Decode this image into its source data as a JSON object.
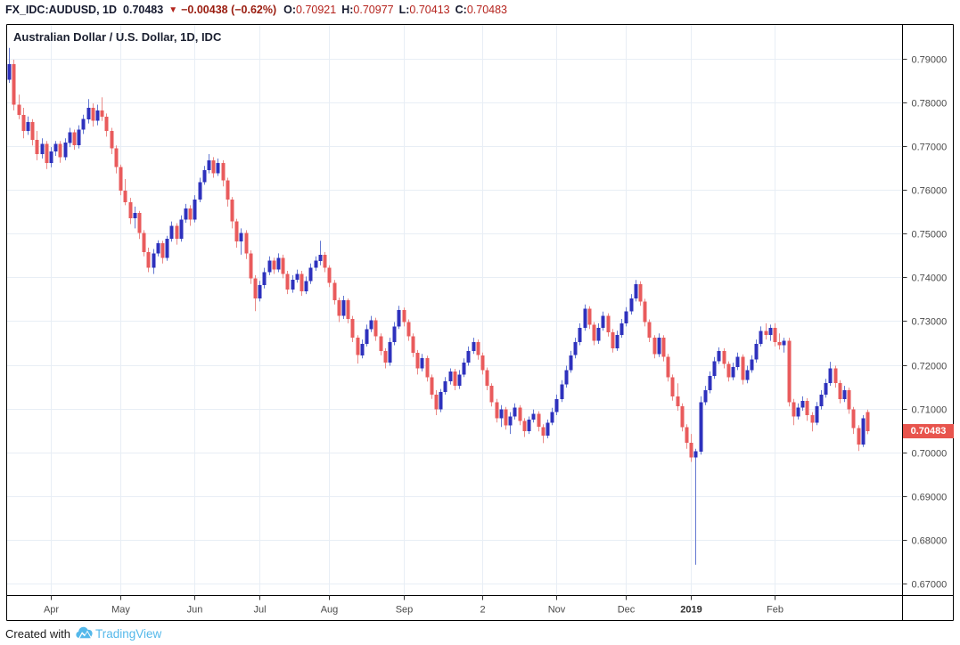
{
  "header": {
    "symbol": "FX_IDC:AUDUSD, 1D",
    "last_price": "0.70483",
    "direction_icon": "▼",
    "change": "−0.00438 (−0.62%)",
    "ohlc": [
      {
        "label": "O:",
        "value": "0.70921"
      },
      {
        "label": "H:",
        "value": "0.70977"
      },
      {
        "label": "L:",
        "value": "0.70413"
      },
      {
        "label": "C:",
        "value": "0.70483"
      }
    ]
  },
  "chart": {
    "title": "Australian Dollar / U.S. Dollar, 1D, IDC",
    "price_tag": "0.70483"
  },
  "footer": {
    "created_with": "Created with",
    "brand": "TradingView"
  },
  "colors": {
    "up_body": "#2e31bd",
    "up_wick": "#6479d2",
    "down_body": "#e95b5c",
    "down_wick": "#ea8b88",
    "grid": "#e8eef5",
    "frame": "#000000",
    "axis_text": "#4a4a4a",
    "axis_text_bold": "#2e2e2e",
    "tag_bg": "#e8544d",
    "tag_text": "#ffffff",
    "brand_blue": "#54b8ea"
  },
  "chart_data": {
    "type": "candlestick",
    "title": "Australian Dollar / U.S. Dollar, 1D, IDC",
    "symbol": "AUD/USD",
    "interval": "1D",
    "source": "IDC",
    "legend_position": "none",
    "grid": true,
    "y_axis": {
      "side": "right",
      "min": 0.67,
      "max": 0.79,
      "tick_labels": [
        "0.79000",
        "0.78000",
        "0.77000",
        "0.76000",
        "0.75000",
        "0.74000",
        "0.73000",
        "0.72000",
        "0.71000",
        "0.70000",
        "0.69000",
        "0.68000",
        "0.67000"
      ]
    },
    "x_axis": {
      "side": "bottom",
      "ticks": [
        {
          "label": "Apr",
          "index": 9,
          "bold": false
        },
        {
          "label": "May",
          "index": 24,
          "bold": false
        },
        {
          "label": "Jun",
          "index": 40,
          "bold": false
        },
        {
          "label": "Jul",
          "index": 54,
          "bold": false
        },
        {
          "label": "Aug",
          "index": 69,
          "bold": false
        },
        {
          "label": "Sep",
          "index": 85,
          "bold": false
        },
        {
          "label": "2",
          "index": 102,
          "bold": false
        },
        {
          "label": "Nov",
          "index": 118,
          "bold": false
        },
        {
          "label": "Dec",
          "index": 133,
          "bold": false
        },
        {
          "label": "2019",
          "index": 147,
          "bold": true
        },
        {
          "label": "Feb",
          "index": 165,
          "bold": false
        }
      ]
    },
    "last_close": 0.70483,
    "last_ohlc": {
      "open": 0.70921,
      "high": 0.70977,
      "low": 0.70413,
      "close": 0.70483
    },
    "candles": [
      [
        0.7852,
        0.7925,
        0.7845,
        0.7888
      ],
      [
        0.7888,
        0.7898,
        0.7782,
        0.7795
      ],
      [
        0.7795,
        0.7818,
        0.7762,
        0.7772
      ],
      [
        0.7772,
        0.7788,
        0.7718,
        0.7735
      ],
      [
        0.7735,
        0.7768,
        0.7726,
        0.7755
      ],
      [
        0.7755,
        0.7762,
        0.7702,
        0.7715
      ],
      [
        0.7715,
        0.7735,
        0.7668,
        0.7682
      ],
      [
        0.7682,
        0.7718,
        0.7672,
        0.7705
      ],
      [
        0.7705,
        0.7712,
        0.7648,
        0.7662
      ],
      [
        0.7662,
        0.7698,
        0.7652,
        0.7688
      ],
      [
        0.7688,
        0.7712,
        0.7678,
        0.7705
      ],
      [
        0.7705,
        0.7712,
        0.7662,
        0.7675
      ],
      [
        0.7675,
        0.7718,
        0.7668,
        0.7708
      ],
      [
        0.7708,
        0.7742,
        0.7698,
        0.7732
      ],
      [
        0.7732,
        0.7738,
        0.7692,
        0.7702
      ],
      [
        0.7702,
        0.7748,
        0.7695,
        0.7738
      ],
      [
        0.7738,
        0.7772,
        0.7728,
        0.7762
      ],
      [
        0.7762,
        0.7808,
        0.7752,
        0.7788
      ],
      [
        0.7788,
        0.7798,
        0.7745,
        0.7758
      ],
      [
        0.7758,
        0.7795,
        0.7748,
        0.7782
      ],
      [
        0.7782,
        0.7812,
        0.7758,
        0.7768
      ],
      [
        0.7768,
        0.7775,
        0.7722,
        0.7735
      ],
      [
        0.7735,
        0.7742,
        0.7682,
        0.7695
      ],
      [
        0.7695,
        0.7702,
        0.7638,
        0.7652
      ],
      [
        0.7652,
        0.7658,
        0.7588,
        0.7598
      ],
      [
        0.7598,
        0.7625,
        0.7565,
        0.7572
      ],
      [
        0.7572,
        0.7582,
        0.7522,
        0.7535
      ],
      [
        0.7535,
        0.7562,
        0.7512,
        0.7548
      ],
      [
        0.7548,
        0.7552,
        0.7488,
        0.7502
      ],
      [
        0.7502,
        0.7508,
        0.7448,
        0.7458
      ],
      [
        0.7458,
        0.7468,
        0.7412,
        0.7422
      ],
      [
        0.7422,
        0.7465,
        0.7408,
        0.7455
      ],
      [
        0.7455,
        0.7485,
        0.7448,
        0.7478
      ],
      [
        0.7478,
        0.7484,
        0.7432,
        0.7445
      ],
      [
        0.7445,
        0.7495,
        0.7438,
        0.7488
      ],
      [
        0.7488,
        0.7528,
        0.7482,
        0.7518
      ],
      [
        0.7518,
        0.7524,
        0.7475,
        0.7488
      ],
      [
        0.7488,
        0.7542,
        0.7482,
        0.7532
      ],
      [
        0.7532,
        0.7568,
        0.7525,
        0.7558
      ],
      [
        0.7558,
        0.7565,
        0.7518,
        0.7532
      ],
      [
        0.7532,
        0.7588,
        0.7526,
        0.7578
      ],
      [
        0.7578,
        0.7628,
        0.7572,
        0.7618
      ],
      [
        0.7618,
        0.7655,
        0.7612,
        0.7645
      ],
      [
        0.7645,
        0.7682,
        0.7638,
        0.7668
      ],
      [
        0.7668,
        0.7675,
        0.7628,
        0.7638
      ],
      [
        0.7638,
        0.7672,
        0.7632,
        0.7662
      ],
      [
        0.7662,
        0.7668,
        0.7608,
        0.7622
      ],
      [
        0.7622,
        0.7628,
        0.7562,
        0.7578
      ],
      [
        0.7578,
        0.7584,
        0.7512,
        0.7528
      ],
      [
        0.7528,
        0.7534,
        0.7468,
        0.7482
      ],
      [
        0.7482,
        0.7512,
        0.7452,
        0.7502
      ],
      [
        0.7502,
        0.7508,
        0.7442,
        0.7455
      ],
      [
        0.7455,
        0.7462,
        0.7385,
        0.7398
      ],
      [
        0.7398,
        0.7405,
        0.7323,
        0.7352
      ],
      [
        0.7352,
        0.7392,
        0.7345,
        0.7382
      ],
      [
        0.7382,
        0.7422,
        0.7375,
        0.7412
      ],
      [
        0.7412,
        0.7448,
        0.7405,
        0.7438
      ],
      [
        0.7438,
        0.7445,
        0.7408,
        0.7418
      ],
      [
        0.7418,
        0.7455,
        0.7412,
        0.7445
      ],
      [
        0.7445,
        0.7452,
        0.7398,
        0.7408
      ],
      [
        0.7408,
        0.7415,
        0.7362,
        0.7372
      ],
      [
        0.7372,
        0.7405,
        0.7365,
        0.7395
      ],
      [
        0.7395,
        0.7418,
        0.7388,
        0.7408
      ],
      [
        0.7408,
        0.7415,
        0.7358,
        0.7368
      ],
      [
        0.7368,
        0.7402,
        0.7362,
        0.7392
      ],
      [
        0.7392,
        0.7432,
        0.7385,
        0.7422
      ],
      [
        0.7422,
        0.7448,
        0.7415,
        0.7438
      ],
      [
        0.7438,
        0.7484,
        0.7428,
        0.7452
      ],
      [
        0.7452,
        0.7458,
        0.7412,
        0.7422
      ],
      [
        0.7422,
        0.7428,
        0.7378,
        0.7388
      ],
      [
        0.7388,
        0.7394,
        0.7338,
        0.7348
      ],
      [
        0.7348,
        0.7354,
        0.7298,
        0.7312
      ],
      [
        0.7312,
        0.7358,
        0.7305,
        0.7348
      ],
      [
        0.7348,
        0.7352,
        0.7295,
        0.7305
      ],
      [
        0.7305,
        0.7312,
        0.7252,
        0.7262
      ],
      [
        0.7262,
        0.7268,
        0.7203,
        0.7222
      ],
      [
        0.7222,
        0.7258,
        0.7215,
        0.7248
      ],
      [
        0.7248,
        0.7292,
        0.7242,
        0.7282
      ],
      [
        0.7282,
        0.7312,
        0.7275,
        0.7302
      ],
      [
        0.7302,
        0.7308,
        0.7255,
        0.7265
      ],
      [
        0.7265,
        0.7272,
        0.7222,
        0.7232
      ],
      [
        0.7232,
        0.7238,
        0.7192,
        0.7205
      ],
      [
        0.7205,
        0.7262,
        0.7198,
        0.7252
      ],
      [
        0.7252,
        0.7298,
        0.7245,
        0.7288
      ],
      [
        0.7288,
        0.7335,
        0.7282,
        0.7325
      ],
      [
        0.7325,
        0.7331,
        0.7288,
        0.7298
      ],
      [
        0.7298,
        0.7304,
        0.7255,
        0.7265
      ],
      [
        0.7265,
        0.7272,
        0.7218,
        0.7228
      ],
      [
        0.7228,
        0.7234,
        0.7178,
        0.7192
      ],
      [
        0.7192,
        0.7225,
        0.7185,
        0.7215
      ],
      [
        0.7215,
        0.7221,
        0.7162,
        0.7172
      ],
      [
        0.7172,
        0.7178,
        0.7122,
        0.7132
      ],
      [
        0.7132,
        0.7142,
        0.7085,
        0.7098
      ],
      [
        0.7098,
        0.7145,
        0.7092,
        0.7138
      ],
      [
        0.7138,
        0.7172,
        0.7132,
        0.7162
      ],
      [
        0.7162,
        0.7192,
        0.7155,
        0.7185
      ],
      [
        0.7185,
        0.7191,
        0.7142,
        0.7152
      ],
      [
        0.7152,
        0.7188,
        0.7145,
        0.7178
      ],
      [
        0.7178,
        0.7215,
        0.7172,
        0.7205
      ],
      [
        0.7205,
        0.7242,
        0.7198,
        0.7232
      ],
      [
        0.7232,
        0.7262,
        0.7225,
        0.7252
      ],
      [
        0.7252,
        0.7258,
        0.7212,
        0.7222
      ],
      [
        0.7222,
        0.7228,
        0.7178,
        0.7188
      ],
      [
        0.7188,
        0.7194,
        0.7142,
        0.7152
      ],
      [
        0.7152,
        0.7158,
        0.7105,
        0.7115
      ],
      [
        0.7115,
        0.7122,
        0.7068,
        0.7078
      ],
      [
        0.7078,
        0.7108,
        0.7058,
        0.7098
      ],
      [
        0.7098,
        0.7104,
        0.7052,
        0.7062
      ],
      [
        0.7062,
        0.7092,
        0.7042,
        0.7082
      ],
      [
        0.7082,
        0.7112,
        0.7075,
        0.7102
      ],
      [
        0.7102,
        0.7108,
        0.7062,
        0.7072
      ],
      [
        0.7072,
        0.7078,
        0.7035,
        0.7048
      ],
      [
        0.7048,
        0.7082,
        0.7042,
        0.7075
      ],
      [
        0.7075,
        0.7098,
        0.7068,
        0.7088
      ],
      [
        0.7088,
        0.7094,
        0.7048,
        0.7058
      ],
      [
        0.7058,
        0.7064,
        0.7021,
        0.7038
      ],
      [
        0.7038,
        0.7075,
        0.7032,
        0.7068
      ],
      [
        0.7068,
        0.7102,
        0.7062,
        0.7092
      ],
      [
        0.7092,
        0.7132,
        0.7085,
        0.7122
      ],
      [
        0.7122,
        0.7165,
        0.7115,
        0.7155
      ],
      [
        0.7155,
        0.7198,
        0.7148,
        0.7188
      ],
      [
        0.7188,
        0.7232,
        0.7182,
        0.7222
      ],
      [
        0.7222,
        0.7262,
        0.7215,
        0.7252
      ],
      [
        0.7252,
        0.7295,
        0.7245,
        0.7285
      ],
      [
        0.7285,
        0.7338,
        0.7278,
        0.7328
      ],
      [
        0.7328,
        0.7334,
        0.7282,
        0.7292
      ],
      [
        0.7292,
        0.7298,
        0.7245,
        0.7255
      ],
      [
        0.7255,
        0.7295,
        0.7248,
        0.7285
      ],
      [
        0.7285,
        0.7322,
        0.7278,
        0.7312
      ],
      [
        0.7312,
        0.7318,
        0.7265,
        0.7275
      ],
      [
        0.7275,
        0.7282,
        0.7228,
        0.7238
      ],
      [
        0.7238,
        0.7278,
        0.7232,
        0.7268
      ],
      [
        0.7268,
        0.7305,
        0.7262,
        0.7295
      ],
      [
        0.7295,
        0.7332,
        0.7288,
        0.7322
      ],
      [
        0.7322,
        0.7362,
        0.7315,
        0.7352
      ],
      [
        0.7352,
        0.7394,
        0.7345,
        0.7385
      ],
      [
        0.7385,
        0.7391,
        0.7335,
        0.7345
      ],
      [
        0.7345,
        0.7351,
        0.7288,
        0.7298
      ],
      [
        0.7298,
        0.7304,
        0.7252,
        0.7262
      ],
      [
        0.7262,
        0.7268,
        0.7215,
        0.7225
      ],
      [
        0.7225,
        0.7272,
        0.7218,
        0.7262
      ],
      [
        0.7262,
        0.7268,
        0.7208,
        0.7218
      ],
      [
        0.7218,
        0.7225,
        0.7162,
        0.7172
      ],
      [
        0.7172,
        0.7178,
        0.7118,
        0.7128
      ],
      [
        0.7128,
        0.7158,
        0.7095,
        0.7105
      ],
      [
        0.7105,
        0.7112,
        0.7048,
        0.7058
      ],
      [
        0.7058,
        0.7064,
        0.7008,
        0.7022
      ],
      [
        0.7022,
        0.7042,
        0.6978,
        0.6988
      ],
      [
        0.6988,
        0.7008,
        0.6743,
        0.7002
      ],
      [
        0.7002,
        0.7128,
        0.6995,
        0.7115
      ],
      [
        0.7115,
        0.7152,
        0.7108,
        0.7142
      ],
      [
        0.7142,
        0.7185,
        0.7135,
        0.7175
      ],
      [
        0.7175,
        0.7218,
        0.7168,
        0.7208
      ],
      [
        0.7208,
        0.724,
        0.7202,
        0.7232
      ],
      [
        0.7232,
        0.7238,
        0.7192,
        0.7202
      ],
      [
        0.7202,
        0.7208,
        0.7162,
        0.7172
      ],
      [
        0.7172,
        0.7205,
        0.7165,
        0.7195
      ],
      [
        0.7195,
        0.7228,
        0.7188,
        0.7218
      ],
      [
        0.7218,
        0.7224,
        0.7155,
        0.7165
      ],
      [
        0.7165,
        0.7198,
        0.7158,
        0.7188
      ],
      [
        0.7188,
        0.7222,
        0.7182,
        0.7212
      ],
      [
        0.7212,
        0.7258,
        0.7205,
        0.7248
      ],
      [
        0.7248,
        0.7288,
        0.7242,
        0.7278
      ],
      [
        0.7278,
        0.7295,
        0.7258,
        0.7268
      ],
      [
        0.7268,
        0.7292,
        0.7255,
        0.7285
      ],
      [
        0.7285,
        0.7295,
        0.7242,
        0.7252
      ],
      [
        0.7252,
        0.7272,
        0.7235,
        0.7245
      ],
      [
        0.7245,
        0.7262,
        0.7228,
        0.7255
      ],
      [
        0.7255,
        0.7262,
        0.7105,
        0.7115
      ],
      [
        0.7115,
        0.7122,
        0.7062,
        0.7082
      ],
      [
        0.7082,
        0.7112,
        0.7075,
        0.7102
      ],
      [
        0.7102,
        0.7128,
        0.7095,
        0.7118
      ],
      [
        0.7118,
        0.7124,
        0.7072,
        0.7085
      ],
      [
        0.7085,
        0.7092,
        0.7048,
        0.7068
      ],
      [
        0.7068,
        0.7115,
        0.7062,
        0.7105
      ],
      [
        0.7105,
        0.7142,
        0.7098,
        0.7132
      ],
      [
        0.7132,
        0.7168,
        0.7125,
        0.7158
      ],
      [
        0.7158,
        0.7207,
        0.7152,
        0.7192
      ],
      [
        0.7192,
        0.7198,
        0.7148,
        0.7158
      ],
      [
        0.7158,
        0.7165,
        0.7112,
        0.7122
      ],
      [
        0.7122,
        0.7152,
        0.7115,
        0.7142
      ],
      [
        0.7142,
        0.7148,
        0.7088,
        0.7098
      ],
      [
        0.7098,
        0.7104,
        0.7042,
        0.7055
      ],
      [
        0.7055,
        0.7062,
        0.7003,
        0.7018
      ],
      [
        0.7018,
        0.7085,
        0.7012,
        0.7078
      ],
      [
        0.70921,
        0.70977,
        0.70413,
        0.70483
      ]
    ]
  }
}
